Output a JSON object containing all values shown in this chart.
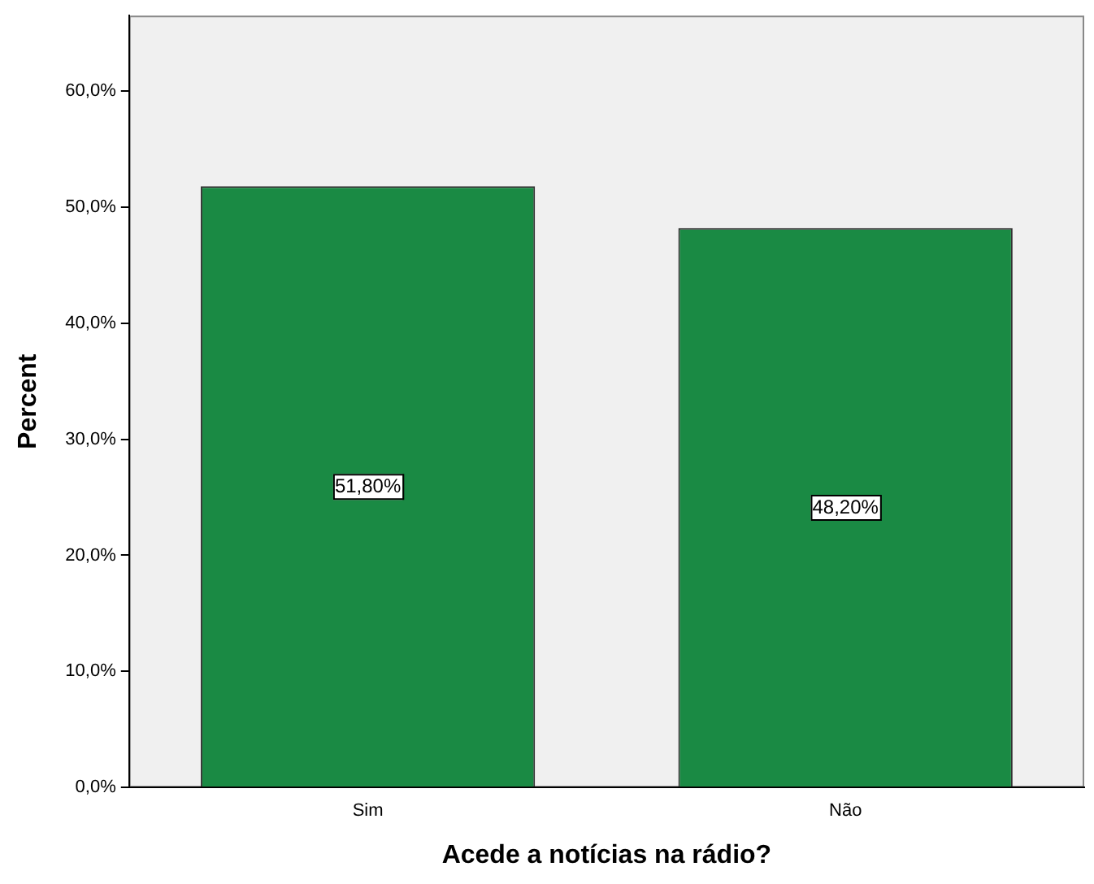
{
  "chart_data": {
    "type": "bar",
    "xlabel": "Acede a notícias na rádio?",
    "ylabel": "Percent",
    "categories": [
      "Sim",
      "Não"
    ],
    "values": [
      51.8,
      48.2
    ],
    "value_labels": [
      "51,80%",
      "48,20%"
    ],
    "color": "#1a8a44",
    "ylim": [
      0,
      66.5
    ],
    "yticks": [
      {
        "value": 0,
        "label": "0,0%"
      },
      {
        "value": 10,
        "label": "10,0%"
      },
      {
        "value": 20,
        "label": "20,0%"
      },
      {
        "value": 30,
        "label": "30,0%"
      },
      {
        "value": 40,
        "label": "40,0%"
      },
      {
        "value": 50,
        "label": "50,0%"
      },
      {
        "value": 60,
        "label": "60,0%"
      }
    ],
    "grid": false,
    "legend": false
  }
}
